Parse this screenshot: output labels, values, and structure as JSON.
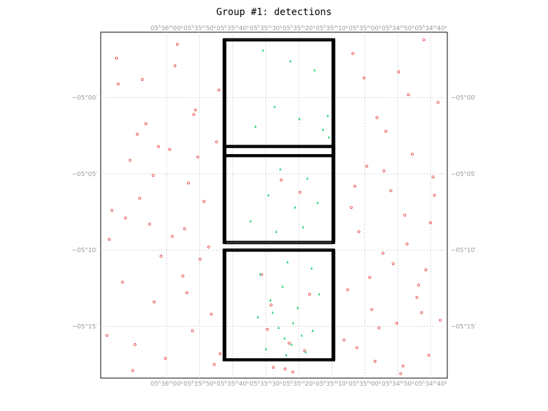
{
  "chart_data": {
    "type": "scatter",
    "title": "Group #1: detections",
    "x_axis": {
      "quantity": "right_ascension",
      "unit": "seconds_of_time",
      "range": [
        20180,
        20075
      ],
      "ticks": [
        {
          "value": 20160,
          "h": "05",
          "m": "36",
          "s": "00"
        },
        {
          "value": 20150,
          "h": "05",
          "m": "35",
          "s": "50"
        },
        {
          "value": 20140,
          "h": "05",
          "m": "35",
          "s": "40"
        },
        {
          "value": 20130,
          "h": "05",
          "m": "35",
          "s": "30"
        },
        {
          "value": 20120,
          "h": "05",
          "m": "35",
          "s": "20"
        },
        {
          "value": 20110,
          "h": "05",
          "m": "35",
          "s": "10"
        },
        {
          "value": 20100,
          "h": "05",
          "m": "35",
          "s": "00"
        },
        {
          "value": 20090,
          "h": "05",
          "m": "34",
          "s": "50"
        },
        {
          "value": 20080,
          "h": "05",
          "m": "34",
          "s": "40"
        }
      ]
    },
    "y_axis": {
      "quantity": "declination",
      "unit": "arcmin",
      "range": [
        -18.4,
        4.3
      ],
      "ticks": [
        {
          "value": 0,
          "label": "−05°00′"
        },
        {
          "value": -5,
          "label": "−05°05′"
        },
        {
          "value": -10,
          "label": "−05°10′"
        },
        {
          "value": -15,
          "label": "−05°15′"
        }
      ]
    },
    "grid": true,
    "colors": {
      "catalog": "#e23b3b",
      "detections": "#1fd36e",
      "frames": "#000000",
      "grid": "#c8c8c8",
      "tick_text": "#999999"
    },
    "frames": [
      {
        "ra": [
          20142.5,
          20109.5
        ],
        "dec": [
          3.8,
          -3.8
        ],
        "copies": 12
      },
      {
        "ra": [
          20142.5,
          20109.5
        ],
        "dec": [
          -3.2,
          -9.5
        ],
        "copies": 12
      },
      {
        "ra": [
          20142.5,
          20109.5
        ],
        "dec": [
          -10.0,
          -17.2
        ],
        "copies": 12
      }
    ],
    "series": [
      {
        "marker": "circle",
        "color": "#e23b3b",
        "x": [
          20175.2,
          20167.4,
          20156.8,
          20151.3,
          20168.9,
          20144.2,
          20103.6,
          20096.3,
          20089.7,
          20082.1,
          20077.8,
          20171.1,
          20162.5,
          20153.4,
          20148.7,
          20099.4,
          20092.1,
          20085.6,
          20079.3,
          20176.6,
          20165.2,
          20158.3,
          20149.9,
          20101.8,
          20094.5,
          20087.2,
          20081.5,
          20173.4,
          20163.8,
          20155.1,
          20146.5,
          20105.2,
          20097.9,
          20090.3,
          20083.7,
          20178.1,
          20169.6,
          20160.4,
          20152.2,
          20143.8,
          20102.4,
          20095.7,
          20088.4,
          20080.6,
          20174.7,
          20166.3,
          20157.5,
          20150.6,
          20100.2,
          20093.6,
          20086.8,
          20078.9,
          20172.5,
          20164.1,
          20154.6,
          20147.3,
          20104.1,
          20098.5,
          20091.4,
          20084.2,
          20077.1,
          20170.3,
          20161.7,
          20153.9,
          20145.6,
          20106.3,
          20096.9,
          20089.1,
          20082.8,
          20177.4,
          20168.2,
          20159.1,
          20151.8,
          20144.9,
          20103.0,
          20094.2,
          20087.9,
          20080.1,
          20125.3,
          20119.6,
          20131.2,
          20128.4,
          20116.7,
          20124.1,
          20121.8,
          20127.7,
          20129.5,
          20118.2,
          20122.9
        ],
        "y": [
          2.6,
          1.2,
          3.5,
          -0.8,
          -2.4,
          0.5,
          2.9,
          -1.3,
          1.7,
          3.8,
          -0.3,
          -4.1,
          -3.2,
          -5.6,
          -6.8,
          -4.5,
          -6.1,
          -3.7,
          -5.2,
          -7.4,
          -8.3,
          -9.1,
          -10.6,
          -8.8,
          -10.2,
          -9.6,
          -11.3,
          -12.1,
          -13.4,
          -11.7,
          -14.2,
          -12.6,
          -13.9,
          -14.8,
          -12.3,
          -15.6,
          -16.2,
          -17.1,
          -15.3,
          -16.8,
          -16.4,
          -15.1,
          -17.6,
          -16.9,
          0.9,
          -1.7,
          2.1,
          -3.9,
          1.3,
          -2.2,
          0.2,
          -6.4,
          -7.9,
          -5.1,
          -8.6,
          -9.8,
          -7.2,
          -11.8,
          -10.9,
          -13.1,
          -14.6,
          -17.9,
          -10.4,
          -12.8,
          -17.5,
          -15.9,
          -17.3,
          -18.1,
          -14.1,
          -9.3,
          -6.6,
          -3.4,
          -1.1,
          -2.9,
          -5.8,
          -4.8,
          -7.7,
          -8.2,
          -5.4,
          -6.2,
          -11.6,
          -13.6,
          -12.9,
          -17.8,
          -18.0,
          -17.7,
          -15.2,
          -16.6,
          -16.1
        ]
      },
      {
        "marker": "triangle",
        "color": "#1fd36e",
        "x": [
          20130.8,
          20122.5,
          20115.2,
          20127.3,
          20119.8,
          20112.6,
          20133.1,
          20125.6,
          20117.4,
          20110.9,
          20129.2,
          20121.1,
          20114.3,
          20134.6,
          20126.8,
          20118.7,
          20123.4,
          20131.7,
          20116.1,
          20124.9,
          20128.6,
          20120.3,
          20113.8,
          20132.4,
          20126.1,
          20119.1,
          20122.2,
          20129.9,
          20117.9,
          20124.3,
          20121.7,
          20127.9,
          20115.8,
          20123.8,
          20111.2
        ],
        "y": [
          3.1,
          2.4,
          1.8,
          -0.6,
          -1.4,
          -2.1,
          -1.9,
          -4.7,
          -5.3,
          -2.6,
          -6.4,
          -7.2,
          -6.9,
          -8.1,
          -8.8,
          -8.5,
          -10.8,
          -11.6,
          -11.2,
          -12.4,
          -13.3,
          -13.8,
          -12.9,
          -14.4,
          -15.1,
          -15.6,
          -16.2,
          -16.5,
          -16.7,
          -15.8,
          -14.8,
          -14.1,
          -15.3,
          -16.9,
          -1.2
        ]
      }
    ]
  }
}
